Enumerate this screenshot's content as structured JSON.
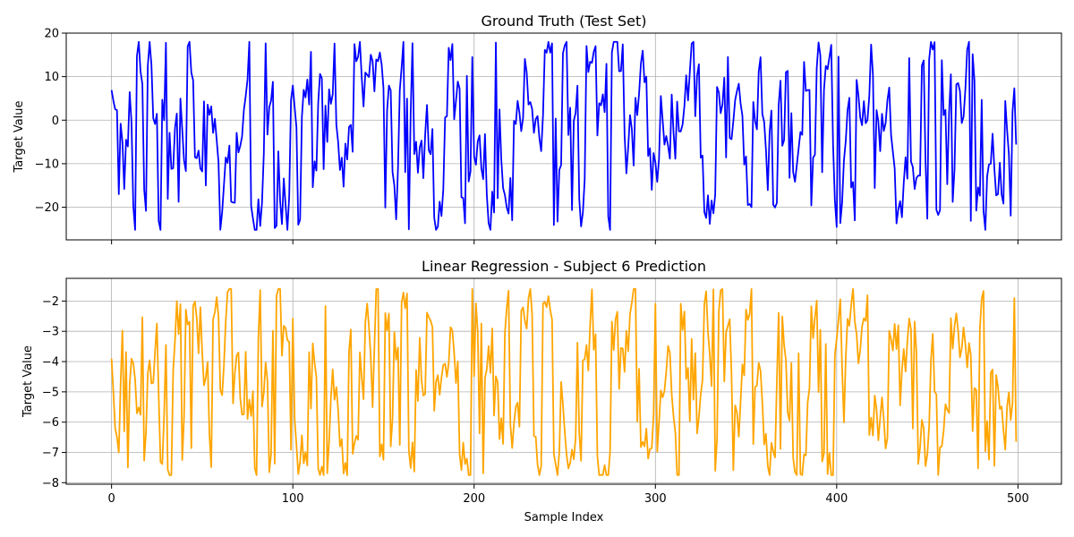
{
  "chart_data": [
    {
      "type": "line",
      "title": "Ground Truth (Test Set)",
      "xlabel": "",
      "ylabel": "Target Value",
      "xlim": [
        -25,
        524
      ],
      "ylim": [
        -27.5,
        20
      ],
      "xticks": [
        0,
        100,
        200,
        300,
        400,
        500
      ],
      "yticks": [
        -20,
        -10,
        0,
        10,
        20
      ],
      "show_xtick_labels": false,
      "grid": true,
      "color": "#0000ff",
      "series": [
        {
          "name": "",
          "x_start": 0,
          "x_step": 1,
          "count": 500,
          "min": -25.2,
          "max": 18.0,
          "seed": 11,
          "anchors": [
            [
              0,
              6.9
            ],
            [
              1,
              4.5
            ],
            [
              2,
              2.5
            ],
            [
              3,
              2.3
            ],
            [
              4,
              -17.0
            ],
            [
              5,
              -0.8
            ],
            [
              6,
              -5.0
            ],
            [
              7,
              -15.8
            ],
            [
              76,
              18.0
            ],
            [
              97,
              -25.2
            ],
            [
              199,
              14.5
            ],
            [
              260,
              -21.2
            ],
            [
              401,
              14.6
            ],
            [
              499,
              -5.6
            ]
          ]
        }
      ]
    },
    {
      "type": "line",
      "title": "Linear Regression - Subject 6 Prediction",
      "xlabel": "Sample Index",
      "ylabel": "Target Value",
      "xlim": [
        -25,
        524
      ],
      "ylim": [
        -8.05,
        -1.25
      ],
      "xticks": [
        0,
        100,
        200,
        300,
        400,
        500
      ],
      "yticks": [
        -8,
        -7,
        -6,
        -5,
        -4,
        -3,
        -2
      ],
      "show_xtick_labels": true,
      "grid": true,
      "color": "#ffa500",
      "series": [
        {
          "name": "",
          "x_start": 0,
          "x_step": 1,
          "count": 500,
          "min": -7.75,
          "max": -1.6,
          "seed": 23,
          "anchors": [
            [
              0,
              -3.9
            ],
            [
              1,
              -5.0
            ],
            [
              2,
              -6.2
            ],
            [
              3,
              -6.5
            ],
            [
              4,
              -7.0
            ],
            [
              36,
              -2.0
            ],
            [
              39,
              -7.25
            ],
            [
              163,
              -1.75
            ],
            [
              199,
              -1.6
            ],
            [
              313,
              -7.75
            ],
            [
              498,
              -1.9
            ],
            [
              499,
              -6.65
            ]
          ]
        }
      ]
    }
  ]
}
